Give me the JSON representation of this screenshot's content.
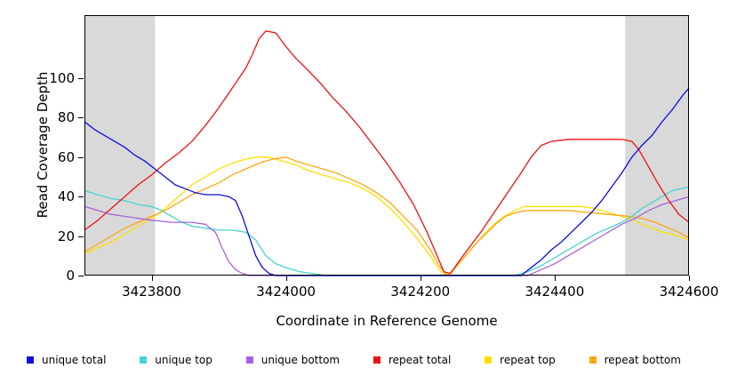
{
  "chart_data": {
    "type": "line",
    "title": "",
    "xlabel": "Coordinate in Reference Genome",
    "ylabel": "Read Coverage Depth",
    "xlim": [
      3423700,
      3424600
    ],
    "ylim": [
      0,
      132
    ],
    "grid": false,
    "legend_position": "bottom",
    "x_tick_values": [
      3423800,
      3424000,
      3424200,
      3424400,
      3424600
    ],
    "x_tick_labels": [
      "3423800",
      "3424000",
      "3424200",
      "3424400",
      "3424600"
    ],
    "y_tick_values": [
      0,
      20,
      40,
      60,
      80,
      100
    ],
    "y_tick_labels": [
      "0",
      "20",
      "40",
      "60",
      "80",
      "100"
    ],
    "shaded_color": "#d9d9d9",
    "shaded_regions": [
      {
        "from": 3423700,
        "to": 3423805
      },
      {
        "from": 3424505,
        "to": 3424600
      }
    ],
    "series": [
      {
        "name": "repeat top",
        "color": "#ffdf00",
        "points": [
          [
            3423700,
            11
          ],
          [
            3423720,
            14
          ],
          [
            3423740,
            17
          ],
          [
            3423760,
            21
          ],
          [
            3423780,
            25
          ],
          [
            3423800,
            29
          ],
          [
            3423820,
            34
          ],
          [
            3423840,
            40
          ],
          [
            3423860,
            46
          ],
          [
            3423880,
            50
          ],
          [
            3423900,
            54
          ],
          [
            3423920,
            57
          ],
          [
            3423940,
            59
          ],
          [
            3423955,
            60
          ],
          [
            3423975,
            60
          ],
          [
            3423995,
            58
          ],
          [
            3424015,
            56
          ],
          [
            3424035,
            53
          ],
          [
            3424055,
            51
          ],
          [
            3424075,
            49
          ],
          [
            3424095,
            47
          ],
          [
            3424115,
            44
          ],
          [
            3424135,
            40
          ],
          [
            3424155,
            34
          ],
          [
            3424175,
            27
          ],
          [
            3424195,
            19
          ],
          [
            3424215,
            10
          ],
          [
            3424228,
            3
          ],
          [
            3424238,
            0
          ],
          [
            3424250,
            3
          ],
          [
            3424265,
            9
          ],
          [
            3424280,
            15
          ],
          [
            3424295,
            21
          ],
          [
            3424310,
            26
          ],
          [
            3424325,
            30
          ],
          [
            3424340,
            33
          ],
          [
            3424355,
            35
          ],
          [
            3424380,
            35
          ],
          [
            3424440,
            35
          ],
          [
            3424460,
            34
          ],
          [
            3424480,
            32
          ],
          [
            3424500,
            30
          ],
          [
            3424515,
            28
          ],
          [
            3424530,
            26
          ],
          [
            3424545,
            24
          ],
          [
            3424560,
            22
          ],
          [
            3424575,
            21
          ],
          [
            3424600,
            18
          ]
        ]
      },
      {
        "name": "repeat bottom",
        "color": "#ffa510",
        "points": [
          [
            3423700,
            12
          ],
          [
            3423720,
            16
          ],
          [
            3423740,
            20
          ],
          [
            3423760,
            24
          ],
          [
            3423780,
            27
          ],
          [
            3423800,
            30
          ],
          [
            3423820,
            33
          ],
          [
            3423840,
            37
          ],
          [
            3423860,
            41
          ],
          [
            3423880,
            44
          ],
          [
            3423900,
            47
          ],
          [
            3423920,
            51
          ],
          [
            3423940,
            54
          ],
          [
            3423960,
            57
          ],
          [
            3423980,
            59
          ],
          [
            3424000,
            60
          ],
          [
            3424015,
            58
          ],
          [
            3424035,
            56
          ],
          [
            3424055,
            54
          ],
          [
            3424075,
            52
          ],
          [
            3424095,
            49
          ],
          [
            3424115,
            46
          ],
          [
            3424135,
            42
          ],
          [
            3424155,
            37
          ],
          [
            3424175,
            30
          ],
          [
            3424195,
            23
          ],
          [
            3424215,
            13
          ],
          [
            3424228,
            5
          ],
          [
            3424240,
            0
          ],
          [
            3424252,
            4
          ],
          [
            3424267,
            10
          ],
          [
            3424282,
            16
          ],
          [
            3424297,
            21
          ],
          [
            3424312,
            26
          ],
          [
            3424327,
            30
          ],
          [
            3424342,
            32
          ],
          [
            3424360,
            33
          ],
          [
            3424420,
            33
          ],
          [
            3424450,
            32
          ],
          [
            3424480,
            31
          ],
          [
            3424510,
            30
          ],
          [
            3424530,
            29
          ],
          [
            3424550,
            27
          ],
          [
            3424570,
            24
          ],
          [
            3424585,
            22
          ],
          [
            3424600,
            19
          ]
        ]
      },
      {
        "name": "unique top",
        "color": "#45d4d4",
        "points": [
          [
            3423700,
            43
          ],
          [
            3423720,
            41
          ],
          [
            3423740,
            39
          ],
          [
            3423760,
            38
          ],
          [
            3423780,
            36
          ],
          [
            3423800,
            35
          ],
          [
            3423815,
            33
          ],
          [
            3423830,
            30
          ],
          [
            3423845,
            27
          ],
          [
            3423860,
            25
          ],
          [
            3423880,
            24
          ],
          [
            3423900,
            23
          ],
          [
            3423920,
            23
          ],
          [
            3423940,
            22
          ],
          [
            3423955,
            18
          ],
          [
            3423970,
            10
          ],
          [
            3423985,
            6
          ],
          [
            3424000,
            4
          ],
          [
            3424020,
            2
          ],
          [
            3424040,
            1
          ],
          [
            3424060,
            0
          ],
          [
            3424340,
            0
          ],
          [
            3424360,
            2
          ],
          [
            3424380,
            5
          ],
          [
            3424400,
            9
          ],
          [
            3424420,
            13
          ],
          [
            3424440,
            17
          ],
          [
            3424460,
            21
          ],
          [
            3424480,
            24
          ],
          [
            3424500,
            27
          ],
          [
            3424515,
            30
          ],
          [
            3424530,
            34
          ],
          [
            3424545,
            37
          ],
          [
            3424560,
            40
          ],
          [
            3424575,
            43
          ],
          [
            3424600,
            45
          ]
        ]
      },
      {
        "name": "unique bottom",
        "color": "#a563d9",
        "points": [
          [
            3423700,
            35
          ],
          [
            3423720,
            33
          ],
          [
            3423740,
            31
          ],
          [
            3423760,
            30
          ],
          [
            3423780,
            29
          ],
          [
            3423800,
            28
          ],
          [
            3423830,
            27
          ],
          [
            3423860,
            27
          ],
          [
            3423880,
            26
          ],
          [
            3423895,
            22
          ],
          [
            3423905,
            14
          ],
          [
            3423915,
            7
          ],
          [
            3423925,
            3
          ],
          [
            3423935,
            1
          ],
          [
            3423945,
            0
          ],
          [
            3424360,
            0
          ],
          [
            3424380,
            3
          ],
          [
            3424400,
            6
          ],
          [
            3424420,
            10
          ],
          [
            3424440,
            14
          ],
          [
            3424460,
            18
          ],
          [
            3424480,
            22
          ],
          [
            3424500,
            26
          ],
          [
            3424520,
            29
          ],
          [
            3424540,
            33
          ],
          [
            3424560,
            36
          ],
          [
            3424580,
            38
          ],
          [
            3424600,
            40
          ]
        ]
      },
      {
        "name": "repeat total",
        "color": "#ed1212",
        "points": [
          [
            3423700,
            23
          ],
          [
            3423720,
            28
          ],
          [
            3423740,
            34
          ],
          [
            3423760,
            40
          ],
          [
            3423780,
            46
          ],
          [
            3423800,
            51
          ],
          [
            3423820,
            57
          ],
          [
            3423840,
            62
          ],
          [
            3423860,
            68
          ],
          [
            3423880,
            76
          ],
          [
            3423900,
            85
          ],
          [
            3423920,
            95
          ],
          [
            3423940,
            105
          ],
          [
            3423950,
            112
          ],
          [
            3423960,
            120
          ],
          [
            3423970,
            124
          ],
          [
            3423985,
            123
          ],
          [
            3424000,
            116
          ],
          [
            3424015,
            110
          ],
          [
            3424030,
            105
          ],
          [
            3424050,
            98
          ],
          [
            3424070,
            90
          ],
          [
            3424090,
            83
          ],
          [
            3424110,
            75
          ],
          [
            3424130,
            66
          ],
          [
            3424150,
            57
          ],
          [
            3424170,
            47
          ],
          [
            3424190,
            36
          ],
          [
            3424210,
            22
          ],
          [
            3424225,
            10
          ],
          [
            3424235,
            2
          ],
          [
            3424245,
            1
          ],
          [
            3424255,
            6
          ],
          [
            3424270,
            13
          ],
          [
            3424290,
            22
          ],
          [
            3424310,
            32
          ],
          [
            3424330,
            42
          ],
          [
            3424350,
            52
          ],
          [
            3424365,
            60
          ],
          [
            3424380,
            66
          ],
          [
            3424395,
            68
          ],
          [
            3424420,
            69
          ],
          [
            3424460,
            69
          ],
          [
            3424500,
            69
          ],
          [
            3424515,
            68
          ],
          [
            3424525,
            64
          ],
          [
            3424540,
            55
          ],
          [
            3424555,
            46
          ],
          [
            3424570,
            38
          ],
          [
            3424585,
            31
          ],
          [
            3424600,
            27
          ]
        ]
      },
      {
        "name": "unique total",
        "color": "#0d0de0",
        "points": [
          [
            3423700,
            78
          ],
          [
            3423715,
            74
          ],
          [
            3423730,
            71
          ],
          [
            3423745,
            68
          ],
          [
            3423760,
            65
          ],
          [
            3423775,
            61
          ],
          [
            3423790,
            58
          ],
          [
            3423805,
            54
          ],
          [
            3423820,
            50
          ],
          [
            3423835,
            46
          ],
          [
            3423850,
            44
          ],
          [
            3423865,
            42
          ],
          [
            3423880,
            41
          ],
          [
            3423900,
            41
          ],
          [
            3423915,
            40
          ],
          [
            3423925,
            38
          ],
          [
            3423935,
            30
          ],
          [
            3423945,
            20
          ],
          [
            3423955,
            10
          ],
          [
            3423965,
            4
          ],
          [
            3423975,
            1
          ],
          [
            3423985,
            0
          ],
          [
            3424350,
            0
          ],
          [
            3424365,
            4
          ],
          [
            3424380,
            8
          ],
          [
            3424395,
            13
          ],
          [
            3424410,
            17
          ],
          [
            3424425,
            22
          ],
          [
            3424440,
            27
          ],
          [
            3424455,
            32
          ],
          [
            3424470,
            38
          ],
          [
            3424485,
            45
          ],
          [
            3424500,
            52
          ],
          [
            3424515,
            60
          ],
          [
            3424530,
            66
          ],
          [
            3424545,
            71
          ],
          [
            3424560,
            78
          ],
          [
            3424575,
            84
          ],
          [
            3424590,
            91
          ],
          [
            3424600,
            95
          ]
        ]
      }
    ],
    "legend": [
      {
        "label": "unique total",
        "color": "#0d0de0"
      },
      {
        "label": "unique top",
        "color": "#45d4d4"
      },
      {
        "label": "unique bottom",
        "color": "#a563d9"
      },
      {
        "label": "repeat total",
        "color": "#ed1212"
      },
      {
        "label": "repeat top",
        "color": "#ffdf00"
      },
      {
        "label": "repeat bottom",
        "color": "#ffa510"
      }
    ]
  }
}
